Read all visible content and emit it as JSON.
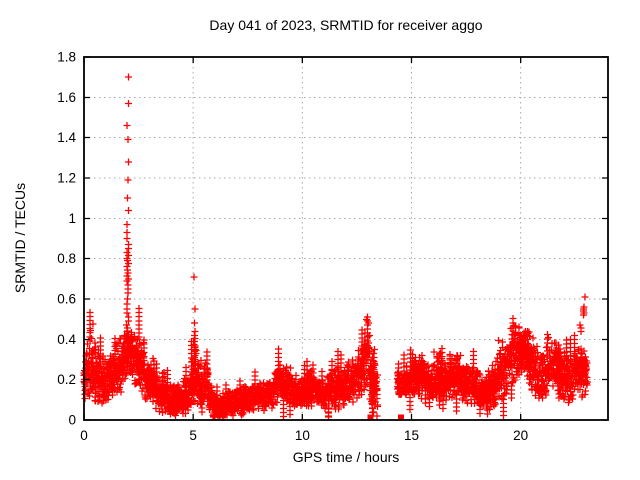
{
  "figure": {
    "background_color": "#ffffff",
    "text_color": "#000000",
    "grid_color": "#a8a8a8",
    "border_color": "#000000"
  },
  "chart_data": {
    "type": "scatter",
    "title": "Day 041 of 2023, SRMTID for receiver aggo",
    "xlabel": "GPS time / hours",
    "ylabel": "SRMTID / TECUs",
    "xlim": [
      0,
      24
    ],
    "ylim": [
      0,
      1.8
    ],
    "xticks": [
      0,
      5,
      10,
      15,
      20
    ],
    "xtick_labels": [
      "0",
      "5",
      "10",
      "15",
      "20"
    ],
    "yticks": [
      0,
      0.2,
      0.4,
      0.6,
      0.8,
      1,
      1.2,
      1.4,
      1.6,
      1.8
    ],
    "ytick_labels": [
      "0",
      "0.2",
      "0.4",
      "0.6",
      "0.8",
      "1",
      "1.2",
      "1.4",
      "1.6",
      "1.8"
    ],
    "grid": true,
    "legend": "none",
    "marker": "plus",
    "marker_color": "#ff0000",
    "series_name": "SRMTID",
    "data_gaps_hours": [
      [
        13.45,
        14.35
      ]
    ],
    "baseline_profile_x_center_spread": [
      [
        0.0,
        0.22,
        0.09
      ],
      [
        0.3,
        0.27,
        0.13
      ],
      [
        0.7,
        0.2,
        0.09
      ],
      [
        1.1,
        0.2,
        0.08
      ],
      [
        1.5,
        0.26,
        0.11
      ],
      [
        1.9,
        0.3,
        0.1
      ],
      [
        2.05,
        0.36,
        0.09
      ],
      [
        2.3,
        0.32,
        0.1
      ],
      [
        2.6,
        0.27,
        0.11
      ],
      [
        3.0,
        0.18,
        0.08
      ],
      [
        3.4,
        0.13,
        0.06
      ],
      [
        3.8,
        0.11,
        0.06
      ],
      [
        4.3,
        0.1,
        0.05
      ],
      [
        4.8,
        0.13,
        0.07
      ],
      [
        5.05,
        0.24,
        0.11
      ],
      [
        5.3,
        0.16,
        0.07
      ],
      [
        5.6,
        0.19,
        0.09
      ],
      [
        5.9,
        0.08,
        0.05
      ],
      [
        6.2,
        0.06,
        0.035
      ],
      [
        6.6,
        0.08,
        0.045
      ],
      [
        7.0,
        0.09,
        0.05
      ],
      [
        7.4,
        0.1,
        0.05
      ],
      [
        7.8,
        0.11,
        0.05
      ],
      [
        8.2,
        0.12,
        0.05
      ],
      [
        8.6,
        0.13,
        0.06
      ],
      [
        8.9,
        0.19,
        0.07
      ],
      [
        9.2,
        0.18,
        0.06
      ],
      [
        9.6,
        0.13,
        0.05
      ],
      [
        10.0,
        0.14,
        0.05
      ],
      [
        10.4,
        0.16,
        0.07
      ],
      [
        10.8,
        0.13,
        0.05
      ],
      [
        11.2,
        0.14,
        0.06
      ],
      [
        11.6,
        0.16,
        0.08
      ],
      [
        12.0,
        0.16,
        0.07
      ],
      [
        12.4,
        0.2,
        0.08
      ],
      [
        12.8,
        0.27,
        0.1
      ],
      [
        13.0,
        0.32,
        0.12
      ],
      [
        13.15,
        0.22,
        0.14
      ],
      [
        13.45,
        0.12,
        0.07
      ],
      [
        14.35,
        0.17,
        0.05
      ],
      [
        14.7,
        0.18,
        0.06
      ],
      [
        15.1,
        0.2,
        0.07
      ],
      [
        15.5,
        0.22,
        0.08
      ],
      [
        15.9,
        0.17,
        0.06
      ],
      [
        16.3,
        0.22,
        0.09
      ],
      [
        16.7,
        0.19,
        0.07
      ],
      [
        17.1,
        0.23,
        0.09
      ],
      [
        17.5,
        0.19,
        0.07
      ],
      [
        17.9,
        0.17,
        0.07
      ],
      [
        18.3,
        0.13,
        0.06
      ],
      [
        18.7,
        0.16,
        0.08
      ],
      [
        19.1,
        0.24,
        0.1
      ],
      [
        19.5,
        0.31,
        0.11
      ],
      [
        19.8,
        0.34,
        0.1
      ],
      [
        20.1,
        0.36,
        0.09
      ],
      [
        20.4,
        0.31,
        0.1
      ],
      [
        20.7,
        0.22,
        0.11
      ],
      [
        21.0,
        0.21,
        0.1
      ],
      [
        21.3,
        0.27,
        0.1
      ],
      [
        21.6,
        0.28,
        0.09
      ],
      [
        21.9,
        0.22,
        0.1
      ],
      [
        22.3,
        0.2,
        0.08
      ],
      [
        22.6,
        0.25,
        0.08
      ],
      [
        22.9,
        0.24,
        0.1
      ],
      [
        23.05,
        0.22,
        0.08
      ]
    ],
    "spike_columns": [
      {
        "x": 2.0,
        "x_jitter": 0.05,
        "values": [
          1.7,
          1.57,
          1.46,
          1.39,
          1.28,
          1.19,
          1.1,
          1.04,
          0.97,
          0.93,
          0.9,
          0.87,
          0.85,
          0.83,
          0.815,
          0.8,
          0.79,
          0.775,
          0.76,
          0.745,
          0.73,
          0.715,
          0.7,
          0.69,
          0.67,
          0.65,
          0.63,
          0.6,
          0.575,
          0.55,
          0.53,
          0.51,
          0.49,
          0.47,
          0.455,
          0.44,
          0.425,
          0.415,
          0.405,
          0.4,
          0.395,
          0.39,
          0.385,
          0.38
        ]
      },
      {
        "x": 5.07,
        "x_jitter": 0.03,
        "values": [
          0.71,
          0.55,
          0.48,
          0.44,
          0.42,
          0.405,
          0.39,
          0.375,
          0.36,
          0.35,
          0.34,
          0.33,
          0.32,
          0.31,
          0.3,
          0.29,
          0.28,
          0.27
        ]
      },
      {
        "x": 13.25,
        "x_jitter": 0.06,
        "values": [
          0.35,
          0.33,
          0.31,
          0.295,
          0.28,
          0.26,
          0.24,
          0.22,
          0.205,
          0.19,
          0.17,
          0.155,
          0.14,
          0.12,
          0.105,
          0.09,
          0.075,
          0.06
        ]
      },
      {
        "x": 22.92,
        "x_jitter": 0.05,
        "values": [
          0.61,
          0.56,
          0.55,
          0.54,
          0.53,
          0.52
        ]
      },
      {
        "x": 22.75,
        "x_jitter": 0.04,
        "values": [
          0.47,
          0.455,
          0.44
        ]
      }
    ],
    "zero_value_markers": {
      "x": [
        13.12,
        14.52
      ],
      "y": 0,
      "shape": "filled-square"
    },
    "density_per_hour": 110,
    "seed": 20230041
  }
}
